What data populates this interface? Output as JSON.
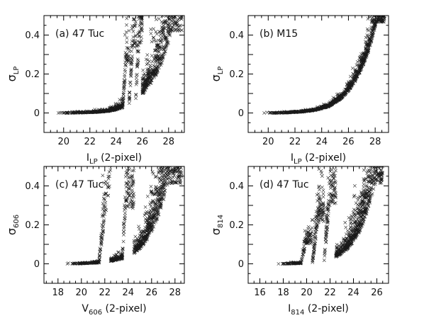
{
  "chart_data": [
    {
      "type": "scatter",
      "panel_label": "(a) 47 Tuc",
      "xlabel": "I",
      "xlabel_sub": "LP",
      "xlabel_suffix": " (2-pixel)",
      "ylabel": "σ",
      "ylabel_sub": "LP",
      "xlim": [
        18.5,
        29.2
      ],
      "ylim": [
        -0.1,
        0.5
      ],
      "xticks": [
        20,
        22,
        24,
        26,
        28
      ],
      "yticks": [
        0,
        0.2,
        0.4
      ],
      "xminor_step": 0.5,
      "yminor_step": 0.05,
      "marker_color": "#1a1a1a",
      "series": [
        {
          "values": [
            {
              "x": 19.6,
              "y": 0.0
            },
            {
              "x": 20.2,
              "y": 0.0
            },
            {
              "x": 20.9,
              "y": 0.001
            },
            {
              "x": 21.5,
              "y": 0.002
            },
            {
              "x": 22.0,
              "y": 0.003
            },
            {
              "x": 22.5,
              "y": 0.005
            },
            {
              "x": 23.0,
              "y": 0.008
            },
            {
              "x": 23.5,
              "y": 0.012
            },
            {
              "x": 24.0,
              "y": 0.02
            },
            {
              "x": 24.5,
              "y": 0.032
            },
            {
              "x": 25.0,
              "y": 0.05
            },
            {
              "x": 25.5,
              "y": 0.075
            },
            {
              "x": 26.0,
              "y": 0.11
            },
            {
              "x": 26.5,
              "y": 0.16
            },
            {
              "x": 27.0,
              "y": 0.22
            },
            {
              "x": 27.5,
              "y": 0.3
            },
            {
              "x": 28.0,
              "y": 0.42
            },
            {
              "x": 28.4,
              "y": 0.49
            },
            {
              "x": 25.3,
              "y": 0.39
            },
            {
              "x": 24.8,
              "y": 0.3
            },
            {
              "x": 25.8,
              "y": 0.42
            }
          ]
        }
      ]
    },
    {
      "type": "scatter",
      "panel_label": "(b) M15",
      "xlabel": "I",
      "xlabel_sub": "LP",
      "xlabel_suffix": " (2-pixel)",
      "ylabel": "σ",
      "ylabel_sub": "LP",
      "xlim": [
        18.5,
        29.0
      ],
      "ylim": [
        -0.1,
        0.5
      ],
      "xticks": [
        20,
        22,
        24,
        26,
        28
      ],
      "yticks": [
        0,
        0.2,
        0.4
      ],
      "xminor_step": 0.5,
      "yminor_step": 0.05,
      "marker_color": "#1a1a1a",
      "series": [
        {
          "values": [
            {
              "x": 19.7,
              "y": 0.0
            },
            {
              "x": 20.5,
              "y": 0.0
            },
            {
              "x": 21.5,
              "y": 0.002
            },
            {
              "x": 22.5,
              "y": 0.006
            },
            {
              "x": 23.5,
              "y": 0.015
            },
            {
              "x": 24.5,
              "y": 0.035
            },
            {
              "x": 25.5,
              "y": 0.08
            },
            {
              "x": 26.0,
              "y": 0.12
            },
            {
              "x": 26.5,
              "y": 0.17
            },
            {
              "x": 27.0,
              "y": 0.24
            },
            {
              "x": 27.5,
              "y": 0.33
            },
            {
              "x": 27.9,
              "y": 0.43
            },
            {
              "x": 28.1,
              "y": 0.49
            }
          ]
        }
      ]
    },
    {
      "type": "scatter",
      "panel_label": "(c) 47 Tuc",
      "xlabel": "V",
      "xlabel_sub": "606",
      "xlabel_suffix": " (2-pixel)",
      "ylabel": "σ",
      "ylabel_sub": "606",
      "xlim": [
        16.8,
        28.8
      ],
      "ylim": [
        -0.1,
        0.5
      ],
      "xticks": [
        18,
        20,
        22,
        24,
        26,
        28
      ],
      "yticks": [
        0,
        0.2,
        0.4
      ],
      "xminor_step": 0.5,
      "yminor_step": 0.05,
      "marker_color": "#1a1a1a",
      "series": [
        {
          "values": [
            {
              "x": 18.8,
              "y": 0.0
            },
            {
              "x": 19.5,
              "y": 0.001
            },
            {
              "x": 20.5,
              "y": 0.003
            },
            {
              "x": 21.5,
              "y": 0.007
            },
            {
              "x": 22.5,
              "y": 0.015
            },
            {
              "x": 23.5,
              "y": 0.03
            },
            {
              "x": 24.5,
              "y": 0.06
            },
            {
              "x": 25.0,
              "y": 0.09
            },
            {
              "x": 25.5,
              "y": 0.13
            },
            {
              "x": 26.0,
              "y": 0.19
            },
            {
              "x": 26.5,
              "y": 0.27
            },
            {
              "x": 27.0,
              "y": 0.37
            },
            {
              "x": 27.4,
              "y": 0.48
            },
            {
              "x": 22.4,
              "y": 0.45
            },
            {
              "x": 23.8,
              "y": 0.33
            },
            {
              "x": 28.0,
              "y": 0.42
            }
          ]
        }
      ]
    },
    {
      "type": "scatter",
      "panel_label": "(d) 47 Tuc",
      "xlabel": "I",
      "xlabel_sub": "814",
      "xlabel_suffix": " (2-pixel)",
      "ylabel": "σ",
      "ylabel_sub": "814",
      "xlim": [
        15.0,
        27.0
      ],
      "ylim": [
        -0.1,
        0.5
      ],
      "xticks": [
        16,
        18,
        20,
        22,
        24,
        26
      ],
      "yticks": [
        0,
        0.2,
        0.4
      ],
      "xminor_step": 0.5,
      "yminor_step": 0.05,
      "marker_color": "#1a1a1a",
      "series": [
        {
          "values": [
            {
              "x": 17.6,
              "y": 0.0
            },
            {
              "x": 18.5,
              "y": 0.001
            },
            {
              "x": 19.5,
              "y": 0.003
            },
            {
              "x": 20.5,
              "y": 0.008
            },
            {
              "x": 21.5,
              "y": 0.018
            },
            {
              "x": 22.5,
              "y": 0.04
            },
            {
              "x": 23.0,
              "y": 0.06
            },
            {
              "x": 23.5,
              "y": 0.09
            },
            {
              "x": 24.0,
              "y": 0.13
            },
            {
              "x": 24.5,
              "y": 0.19
            },
            {
              "x": 25.0,
              "y": 0.27
            },
            {
              "x": 25.5,
              "y": 0.38
            },
            {
              "x": 25.9,
              "y": 0.48
            },
            {
              "x": 20.0,
              "y": 0.12
            },
            {
              "x": 21.0,
              "y": 0.25
            },
            {
              "x": 22.0,
              "y": 0.36
            }
          ]
        }
      ]
    }
  ]
}
